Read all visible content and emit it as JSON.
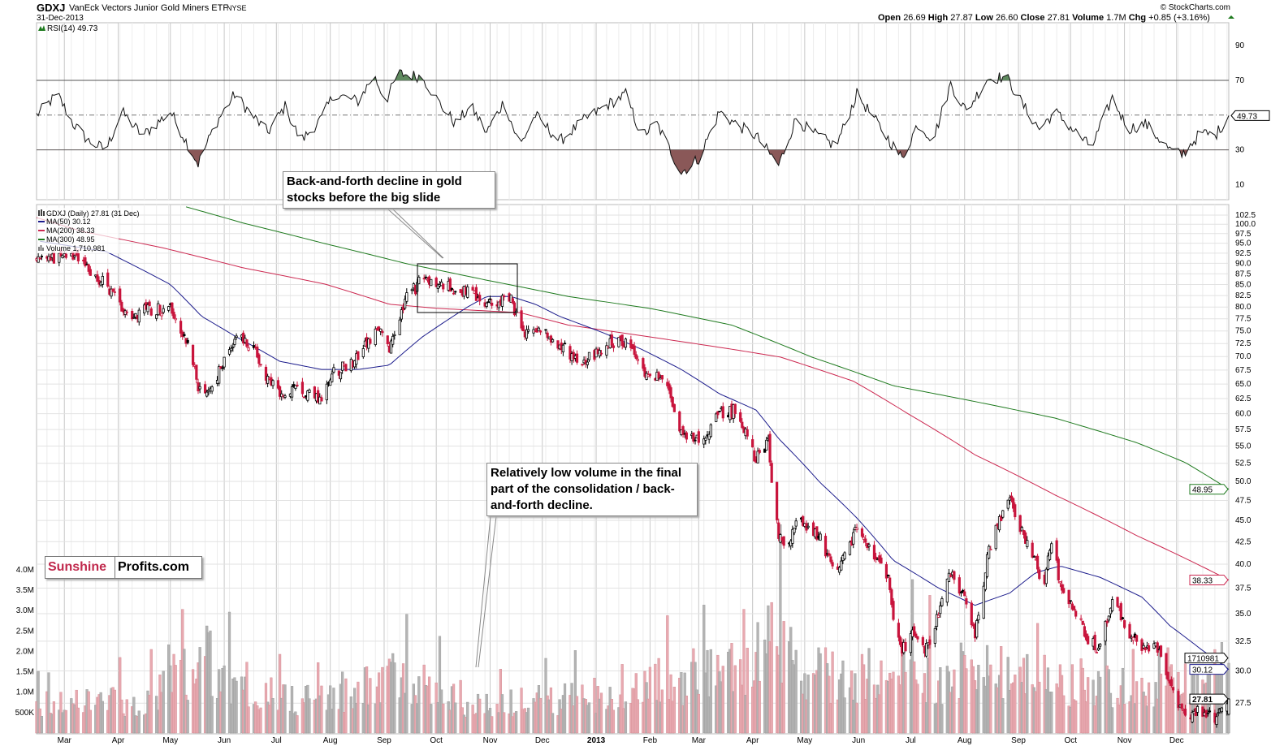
{
  "header": {
    "symbol": "GDXJ",
    "name": "VanEck Vectors Junior Gold Miners ETF",
    "exchange": "NYSE",
    "date": "31-Dec-2013",
    "copyright": "© StockCharts.com",
    "open_label": "Open",
    "open": "26.69",
    "high_label": "High",
    "high": "27.87",
    "low_label": "Low",
    "low": "26.60",
    "close_label": "Close",
    "close": "27.81",
    "volume_label": "Volume",
    "volume": "1.7M",
    "chg_label": "Chg",
    "chg": "+0.85 (+3.16%)"
  },
  "legend": {
    "rsi": "RSI(14) 49.73",
    "price": "GDXJ (Daily) 27.81 (31 Dec)",
    "ma50": "MA(50) 30.12",
    "ma200": "MA(200) 38.33",
    "ma300": "MA(300) 48.95",
    "volume": "Volume 1,710,981"
  },
  "annotations": {
    "note1": "Back-and-forth decline  in gold stocks before the big slide",
    "note2": "Relatively low volume in the final part of the consolidation / back-and-forth decline."
  },
  "logo": {
    "part1": "Sunshine",
    "part2": "Profits.com"
  },
  "colors": {
    "up": "#000000",
    "down": "#c8143c",
    "ma50": "#1c1c8c",
    "ma200": "#cc2850",
    "ma300": "#1e7a1e",
    "vol_down": "#e8a9b0",
    "vol_up": "#b4b4b4",
    "rsi_ob": "#5f8a5f",
    "rsi_os": "#8a5858"
  },
  "chart_data": {
    "type": "candlestick",
    "title": "GDXJ (Daily)",
    "start_date": "2012-02-14",
    "x_unit": "calendar days since start_date",
    "price_scale": "log",
    "ylim": [
      26,
      104
    ],
    "price_ticks": [
      "102.5",
      "100.0",
      "97.5",
      "95.0",
      "92.5",
      "90.0",
      "87.5",
      "85.0",
      "82.5",
      "80.0",
      "77.5",
      "75.0",
      "72.5",
      "70.0",
      "67.5",
      "65.0",
      "62.5",
      "60.0",
      "57.5",
      "55.0",
      "52.5",
      "50.0",
      "47.5",
      "45.0",
      "42.5",
      "40.0",
      "37.5",
      "35.0",
      "32.5",
      "30.0",
      "27.5"
    ],
    "volume_ticks": [
      [
        "4.0M",
        4.0
      ],
      [
        "3.5M",
        3.5
      ],
      [
        "3.0M",
        3.0
      ],
      [
        "2.5M",
        2.5
      ],
      [
        "2.0M",
        2.0
      ],
      [
        "1.5M",
        1.5
      ],
      [
        "1.0M",
        1.0
      ],
      [
        "500K",
        0.5
      ]
    ],
    "rsi_ticks": [
      "90",
      "70",
      "30",
      "10"
    ],
    "x_ticks": [
      [
        "Mar",
        16
      ],
      [
        "Apr",
        47
      ],
      [
        "May",
        77
      ],
      [
        "Jun",
        108
      ],
      [
        "Jul",
        138
      ],
      [
        "Aug",
        169
      ],
      [
        "Sep",
        200
      ],
      [
        "Oct",
        230
      ],
      [
        "Nov",
        261
      ],
      [
        "Dec",
        291
      ],
      [
        "2013",
        322
      ],
      [
        "Feb",
        353
      ],
      [
        "Mar",
        381
      ],
      [
        "Apr",
        412
      ],
      [
        "May",
        442
      ],
      [
        "Jun",
        473
      ],
      [
        "Jul",
        503
      ],
      [
        "Aug",
        534
      ],
      [
        "Sep",
        565
      ],
      [
        "Oct",
        595
      ],
      [
        "Nov",
        626
      ],
      [
        "Dec",
        656
      ]
    ],
    "close_approx": [
      [
        2,
        91.5
      ],
      [
        21,
        91
      ],
      [
        40,
        85
      ],
      [
        54,
        78
      ],
      [
        63,
        79.5
      ],
      [
        77,
        80
      ],
      [
        89,
        70.7
      ],
      [
        95,
        62
      ],
      [
        103,
        65.6
      ],
      [
        114,
        73.8
      ],
      [
        124,
        72
      ],
      [
        133,
        66
      ],
      [
        140,
        63
      ],
      [
        152,
        64
      ],
      [
        164,
        62.6
      ],
      [
        171,
        67
      ],
      [
        185,
        69.9
      ],
      [
        196,
        75.4
      ],
      [
        203,
        71
      ],
      [
        213,
        82
      ],
      [
        222,
        86.2
      ],
      [
        231,
        85
      ],
      [
        248,
        83.3
      ],
      [
        259,
        80.5
      ],
      [
        273,
        82
      ],
      [
        280,
        73.8
      ],
      [
        287,
        76
      ],
      [
        301,
        72
      ],
      [
        315,
        69
      ],
      [
        327,
        72
      ],
      [
        339,
        73
      ],
      [
        348,
        67.8
      ],
      [
        360,
        66
      ],
      [
        371,
        57.4
      ],
      [
        381,
        55.5
      ],
      [
        393,
        60
      ],
      [
        402,
        60.6
      ],
      [
        414,
        53
      ],
      [
        421,
        55.5
      ],
      [
        423,
        50.3
      ],
      [
        427,
        43.2
      ],
      [
        430,
        41.4
      ],
      [
        439,
        45.3
      ],
      [
        451,
        42.7
      ],
      [
        460,
        38.3
      ],
      [
        472,
        44.2
      ],
      [
        479,
        41.7
      ],
      [
        491,
        37.9
      ],
      [
        493,
        34
      ],
      [
        498,
        31.8
      ],
      [
        505,
        33.2
      ],
      [
        512,
        31.8
      ],
      [
        519,
        34.8
      ],
      [
        526,
        39
      ],
      [
        535,
        36
      ],
      [
        540,
        33.2
      ],
      [
        547,
        40.4
      ],
      [
        551,
        44.2
      ],
      [
        560,
        47.6
      ],
      [
        568,
        43.2
      ],
      [
        575,
        40.4
      ],
      [
        579,
        36.6
      ],
      [
        584,
        42.7
      ],
      [
        589,
        37.9
      ],
      [
        596,
        36
      ],
      [
        605,
        32.5
      ],
      [
        612,
        31.8
      ],
      [
        619,
        36.6
      ],
      [
        628,
        33.5
      ],
      [
        636,
        31.8
      ],
      [
        645,
        31.8
      ],
      [
        652,
        29.1
      ],
      [
        661,
        26.4
      ],
      [
        670,
        27
      ],
      [
        678,
        26.4
      ],
      [
        686,
        27.81
      ]
    ],
    "ma50": [
      [
        2,
        95.5
      ],
      [
        40,
        92.9
      ],
      [
        77,
        85
      ],
      [
        95,
        78
      ],
      [
        114,
        74
      ],
      [
        140,
        69.1
      ],
      [
        164,
        67.6
      ],
      [
        185,
        67.6
      ],
      [
        203,
        68.4
      ],
      [
        222,
        73.8
      ],
      [
        248,
        80
      ],
      [
        259,
        82.3
      ],
      [
        273,
        82.3
      ],
      [
        287,
        80.6
      ],
      [
        301,
        78
      ],
      [
        327,
        74.5
      ],
      [
        348,
        71.4
      ],
      [
        371,
        67.6
      ],
      [
        393,
        63.3
      ],
      [
        414,
        60.6
      ],
      [
        427,
        56.1
      ],
      [
        451,
        49.8
      ],
      [
        472,
        45.3
      ],
      [
        493,
        40.4
      ],
      [
        519,
        37.5
      ],
      [
        540,
        35.8
      ],
      [
        560,
        37
      ],
      [
        575,
        39.1
      ],
      [
        589,
        39.8
      ],
      [
        612,
        38.6
      ],
      [
        636,
        36.6
      ],
      [
        652,
        33.9
      ],
      [
        670,
        31.8
      ],
      [
        686,
        30.12
      ]
    ],
    "ma200": [
      [
        0,
        101.8
      ],
      [
        26,
        98.1
      ],
      [
        72,
        93.9
      ],
      [
        119,
        88.9
      ],
      [
        166,
        85.1
      ],
      [
        203,
        80.6
      ],
      [
        231,
        79.7
      ],
      [
        278,
        78.8
      ],
      [
        306,
        76.2
      ],
      [
        353,
        73.8
      ],
      [
        400,
        71.4
      ],
      [
        428,
        69.9
      ],
      [
        470,
        65.5
      ],
      [
        502,
        59.9
      ],
      [
        540,
        53.7
      ],
      [
        586,
        48.2
      ],
      [
        633,
        43.2
      ],
      [
        686,
        38.33
      ]
    ],
    "ma300": [
      [
        86,
        104.8
      ],
      [
        119,
        100.3
      ],
      [
        166,
        94.9
      ],
      [
        213,
        89.9
      ],
      [
        259,
        86
      ],
      [
        306,
        82.3
      ],
      [
        353,
        79.7
      ],
      [
        400,
        76.2
      ],
      [
        446,
        69.9
      ],
      [
        493,
        64.7
      ],
      [
        540,
        62
      ],
      [
        586,
        59.3
      ],
      [
        633,
        55.5
      ],
      [
        661,
        52.6
      ],
      [
        686,
        48.95
      ]
    ],
    "rsi14": [
      [
        0,
        50
      ],
      [
        12,
        62
      ],
      [
        21,
        45
      ],
      [
        30,
        35
      ],
      [
        40,
        30
      ],
      [
        49,
        52
      ],
      [
        61,
        38
      ],
      [
        77,
        52
      ],
      [
        86,
        35
      ],
      [
        93,
        22
      ],
      [
        103,
        45
      ],
      [
        114,
        62
      ],
      [
        124,
        50
      ],
      [
        133,
        40
      ],
      [
        143,
        55
      ],
      [
        152,
        35
      ],
      [
        164,
        48
      ],
      [
        171,
        62
      ],
      [
        185,
        58
      ],
      [
        194,
        73
      ],
      [
        201,
        58
      ],
      [
        208,
        74
      ],
      [
        222,
        72
      ],
      [
        231,
        58
      ],
      [
        241,
        45
      ],
      [
        250,
        55
      ],
      [
        259,
        40
      ],
      [
        269,
        58
      ],
      [
        278,
        32
      ],
      [
        287,
        50
      ],
      [
        301,
        35
      ],
      [
        315,
        47
      ],
      [
        327,
        55
      ],
      [
        339,
        62
      ],
      [
        348,
        38
      ],
      [
        357,
        45
      ],
      [
        371,
        17
      ],
      [
        381,
        25
      ],
      [
        393,
        52
      ],
      [
        402,
        45
      ],
      [
        414,
        38
      ],
      [
        427,
        21
      ],
      [
        437,
        48
      ],
      [
        446,
        40
      ],
      [
        460,
        32
      ],
      [
        472,
        62
      ],
      [
        484,
        45
      ],
      [
        498,
        25
      ],
      [
        507,
        45
      ],
      [
        516,
        36
      ],
      [
        526,
        68
      ],
      [
        535,
        52
      ],
      [
        547,
        71
      ],
      [
        558,
        72
      ],
      [
        568,
        55
      ],
      [
        577,
        42
      ],
      [
        586,
        52
      ],
      [
        596,
        42
      ],
      [
        607,
        31
      ],
      [
        619,
        60
      ],
      [
        628,
        42
      ],
      [
        638,
        45
      ],
      [
        652,
        30
      ],
      [
        659,
        27
      ],
      [
        670,
        40
      ],
      [
        678,
        38
      ],
      [
        686,
        49.73
      ]
    ],
    "volume_millions": [
      [
        0,
        0.8
      ],
      [
        30,
        0.8
      ],
      [
        60,
        0.9
      ],
      [
        80,
        1.3
      ],
      [
        95,
        2.2
      ],
      [
        105,
        1.6
      ],
      [
        120,
        1.4
      ],
      [
        140,
        0.9
      ],
      [
        165,
        0.9
      ],
      [
        185,
        1.1
      ],
      [
        205,
        1.6
      ],
      [
        220,
        1.3
      ],
      [
        245,
        0.8
      ],
      [
        265,
        0.8
      ],
      [
        290,
        0.9
      ],
      [
        320,
        1.0
      ],
      [
        340,
        1.3
      ],
      [
        365,
        1.4
      ],
      [
        385,
        1.7
      ],
      [
        410,
        1.8
      ],
      [
        425,
        2.6
      ],
      [
        440,
        1.6
      ],
      [
        470,
        1.5
      ],
      [
        490,
        1.9
      ],
      [
        515,
        1.5
      ],
      [
        540,
        1.7
      ],
      [
        570,
        1.5
      ],
      [
        600,
        1.3
      ],
      [
        630,
        1.2
      ],
      [
        660,
        1.3
      ],
      [
        686,
        1.71
      ]
    ],
    "last_values": {
      "rsi": "49.73",
      "ma300": "48.95",
      "ma200": "38.33",
      "volume": "1710981",
      "ma50": "30.12",
      "close": "27.81"
    }
  }
}
